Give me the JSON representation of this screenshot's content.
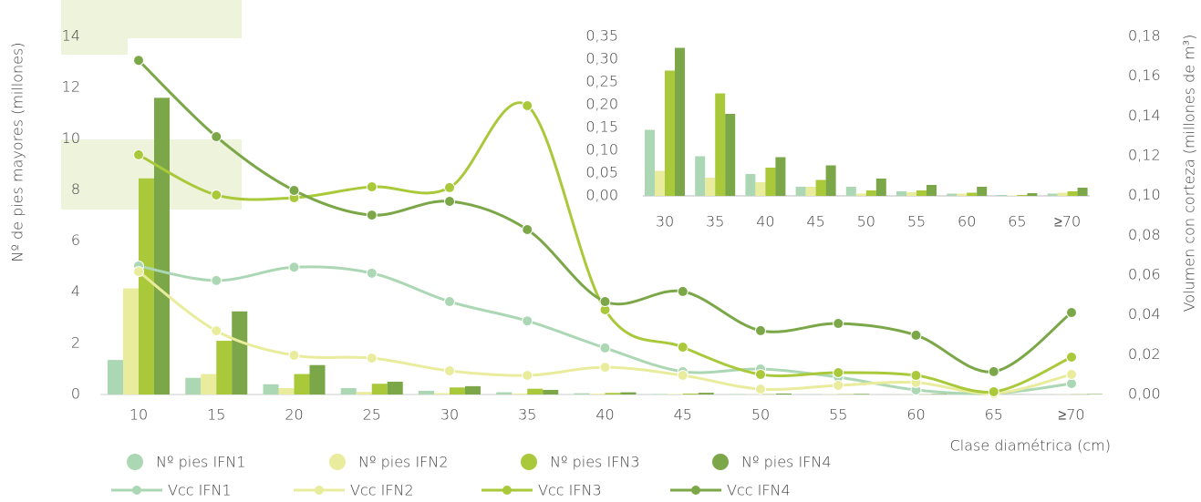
{
  "chart_data": [
    {
      "type": "combo",
      "ylabel": "Nº de pies mayores (millones)",
      "y2label": "Volumen con corteza (millones de m³)",
      "xlabel": "Clase diamétrica (cm)",
      "categories": [
        "10",
        "15",
        "20",
        "25",
        "30",
        "35",
        "40",
        "45",
        "50",
        "55",
        "60",
        "65",
        "≥70"
      ],
      "ylim": [
        0,
        14
      ],
      "yticks": [
        0,
        2,
        4,
        6,
        8,
        10,
        12,
        14
      ],
      "y2lim": [
        0,
        0.18
      ],
      "y2ticks": [
        {
          "value": 0,
          "label": "0,00"
        },
        {
          "value": 0.02,
          "label": "0,02"
        },
        {
          "value": 0.04,
          "label": "0,04"
        },
        {
          "value": 0.06,
          "label": "0,06"
        },
        {
          "value": 0.08,
          "label": "0,08"
        },
        {
          "value": 0.1,
          "label": "0,10"
        },
        {
          "value": 0.12,
          "label": "0,12"
        },
        {
          "value": 0.14,
          "label": "0,14"
        },
        {
          "value": 0.16,
          "label": "0,16"
        },
        {
          "value": 0.18,
          "label": "0,18"
        }
      ],
      "series": [
        {
          "name": "Nº pies IFN1",
          "kind": "bar",
          "color": "#acd7b4",
          "values": [
            1.35,
            0.65,
            0.4,
            0.25,
            0.145,
            0.087,
            0.048,
            0.02,
            0.02,
            0.01,
            0.005,
            0.002,
            0.005
          ]
        },
        {
          "name": "Nº pies IFN2",
          "kind": "bar",
          "color": "#e9ec9c",
          "values": [
            4.15,
            0.8,
            0.25,
            0.1,
            0.055,
            0.04,
            0.03,
            0.02,
            0.005,
            0.008,
            0.005,
            0.001,
            0.007
          ]
        },
        {
          "name": "Nº pies IFN3",
          "kind": "bar",
          "color": "#a9c93b",
          "values": [
            8.45,
            2.1,
            0.8,
            0.42,
            0.275,
            0.225,
            0.062,
            0.035,
            0.012,
            0.012,
            0.007,
            0.002,
            0.01
          ]
        },
        {
          "name": "Nº pies IFN4",
          "kind": "bar",
          "color": "#7ba748",
          "values": [
            11.6,
            3.25,
            1.15,
            0.5,
            0.325,
            0.18,
            0.085,
            0.067,
            0.038,
            0.024,
            0.02,
            0.006,
            0.018
          ]
        },
        {
          "name": "Vcc IFN1",
          "kind": "line",
          "axis": "y2",
          "color": "#acd7b4",
          "values": [
            0.0646,
            0.0573,
            0.064,
            0.061,
            0.0467,
            0.037,
            0.0234,
            0.0115,
            0.0128,
            0.0087,
            0.0023,
            0.0005,
            0.0055
          ]
        },
        {
          "name": "Vcc IFN2",
          "kind": "line",
          "axis": "y2",
          "color": "#e9ec9c",
          "values": [
            0.0618,
            0.032,
            0.0197,
            0.0183,
            0.0119,
            0.0096,
            0.0137,
            0.0096,
            0.0027,
            0.0046,
            0.006,
            0.0005,
            0.0101
          ]
        },
        {
          "name": "Vcc IFN3",
          "kind": "line",
          "axis": "y2",
          "color": "#a9c93b",
          "values": [
            0.1205,
            0.1003,
            0.0989,
            0.1044,
            0.104,
            0.1452,
            0.0426,
            0.0238,
            0.0101,
            0.011,
            0.0096,
            0.0014,
            0.0188
          ]
        },
        {
          "name": "Vcc IFN4",
          "kind": "line",
          "axis": "y2",
          "color": "#7ba748",
          "values": [
            0.168,
            0.1296,
            0.1026,
            0.0902,
            0.0971,
            0.0829,
            0.0467,
            0.0518,
            0.0321,
            0.0357,
            0.0298,
            0.0115,
            0.0412
          ]
        }
      ]
    },
    {
      "type": "bar",
      "categories": [
        "30",
        "35",
        "40",
        "45",
        "50",
        "55",
        "60",
        "65",
        "≥70"
      ],
      "ylim": [
        0,
        0.35
      ],
      "yticks": [
        {
          "value": 0,
          "label": "0,00"
        },
        {
          "value": 0.05,
          "label": "0,05"
        },
        {
          "value": 0.1,
          "label": "0,10"
        },
        {
          "value": 0.15,
          "label": "0,15"
        },
        {
          "value": 0.2,
          "label": "0,20"
        },
        {
          "value": 0.25,
          "label": "0,25"
        },
        {
          "value": 0.3,
          "label": "0,30"
        },
        {
          "value": 0.35,
          "label": "0,35"
        }
      ],
      "series": [
        {
          "color": "#acd7b4",
          "values": [
            0.145,
            0.087,
            0.048,
            0.02,
            0.02,
            0.01,
            0.005,
            0.002,
            0.005
          ]
        },
        {
          "color": "#e9ec9c",
          "values": [
            0.055,
            0.04,
            0.03,
            0.02,
            0.005,
            0.008,
            0.005,
            0.001,
            0.007
          ]
        },
        {
          "color": "#a9c93b",
          "values": [
            0.275,
            0.225,
            0.062,
            0.035,
            0.012,
            0.012,
            0.007,
            0.002,
            0.01
          ]
        },
        {
          "color": "#7ba748",
          "values": [
            0.325,
            0.18,
            0.085,
            0.067,
            0.038,
            0.024,
            0.02,
            0.006,
            0.018
          ]
        }
      ]
    }
  ]
}
